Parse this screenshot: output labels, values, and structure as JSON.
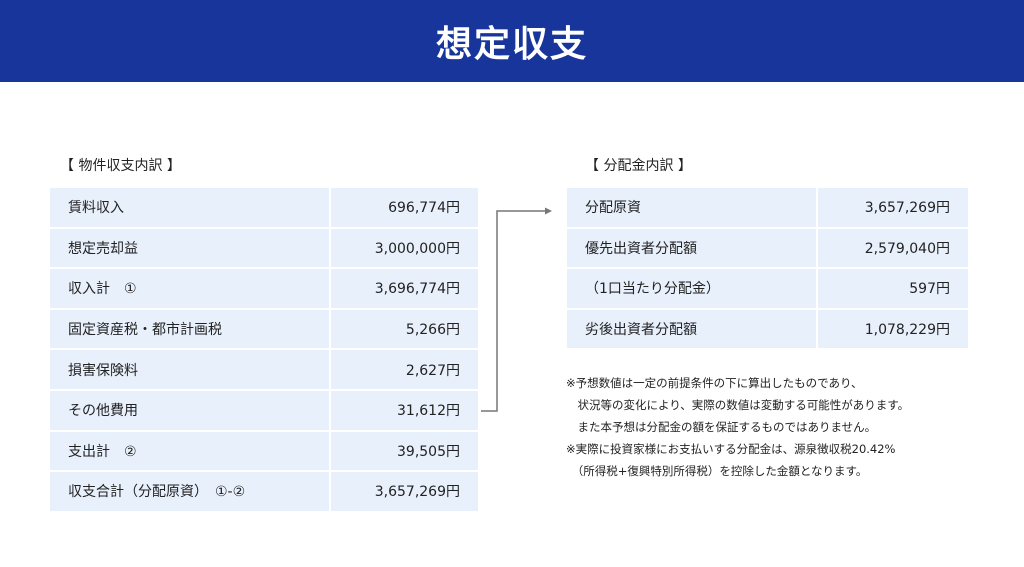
{
  "title": "想定収支",
  "left": {
    "caption": "【 物件収支内訳 】",
    "rows": [
      {
        "label": "賃料収入",
        "value": "696,774円"
      },
      {
        "label": "想定売却益",
        "value": "3,000,000円"
      },
      {
        "label": "収入計　①",
        "value": "3,696,774円"
      },
      {
        "label": "固定資産税・都市計画税",
        "value": "5,266円"
      },
      {
        "label": "損害保険料",
        "value": "2,627円"
      },
      {
        "label": "その他費用",
        "value": "31,612円"
      },
      {
        "label": "支出計　②",
        "value": "39,505円"
      },
      {
        "label": "収支合計（分配原資）　①-②",
        "value": "3,657,269円"
      }
    ]
  },
  "right": {
    "caption": "【 分配金内訳 】",
    "rows": [
      {
        "label": "分配原資",
        "value": "3,657,269円"
      },
      {
        "label": "優先出資者分配額",
        "value": "2,579,040円"
      },
      {
        "label": "（1口当たり分配金）",
        "value": "597円"
      },
      {
        "label": "劣後出資者分配額",
        "value": "1,078,229円"
      }
    ]
  },
  "notes": [
    "※予想数値は一定の前提条件の下に算出したものであり、",
    "　状況等の変化により、実際の数値は変動する可能性があります。",
    "　また本予想は分配金の額を保証するものではありません。",
    "※実際に投資家様にお支払いする分配金は、源泉徴収税20.42%",
    "　（所得税+復興特別所得税）を控除した金額となります。"
  ],
  "colors": {
    "header": "#17359a",
    "cell": "#e8f0fc"
  }
}
